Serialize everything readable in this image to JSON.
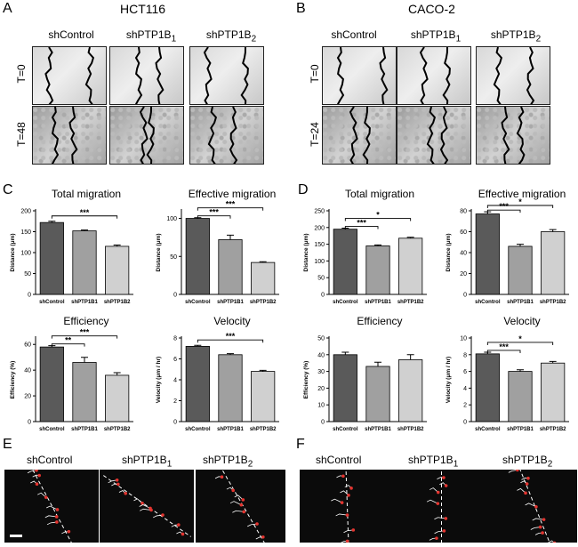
{
  "panels": {
    "A": {
      "letter": "A",
      "cell": "HCT116",
      "conditions": [
        "shControl",
        "shPTP1B",
        "shPTP1B"
      ],
      "subs": [
        "",
        "1",
        "2"
      ],
      "times": [
        "T=0",
        "T=48"
      ]
    },
    "B": {
      "letter": "B",
      "cell": "CACO-2",
      "conditions": [
        "shControl",
        "shPTP1B",
        "shPTP1B"
      ],
      "subs": [
        "",
        "1",
        "2"
      ],
      "times": [
        "T=0",
        "T=24"
      ]
    },
    "C": {
      "letter": "C"
    },
    "D": {
      "letter": "D"
    },
    "E": {
      "letter": "E",
      "conditions": [
        "shControl",
        "shPTP1B",
        "shPTP1B"
      ],
      "subs": [
        "",
        "1",
        "2"
      ]
    },
    "F": {
      "letter": "F",
      "conditions": [
        "shControl",
        "shPTP1B",
        "shPTP1B"
      ],
      "subs": [
        "",
        "1",
        "2"
      ]
    }
  },
  "chart_data": [
    {
      "id": "C1",
      "type": "bar",
      "title": "Total migration",
      "ylabel": "Distance (μm)",
      "categories": [
        "shControl",
        "shPTP1B1",
        "shPTP1B2"
      ],
      "values": [
        172,
        152,
        115
      ],
      "errors": [
        3,
        2,
        3
      ],
      "ylim": [
        0,
        200
      ],
      "yticks": [
        0,
        50,
        100,
        150,
        200
      ],
      "colors": [
        "#5a5a5a",
        "#a0a0a0",
        "#d0d0d0"
      ],
      "significance": [
        {
          "from": 0,
          "to": 2,
          "label": "***"
        }
      ]
    },
    {
      "id": "C2",
      "type": "bar",
      "title": "Effective migration",
      "ylabel": "Distance (μm)",
      "categories": [
        "shControl",
        "shPTP1B1",
        "shPTP1B2"
      ],
      "values": [
        100,
        72,
        42
      ],
      "errors": [
        1,
        6,
        1
      ],
      "ylim": [
        0,
        110
      ],
      "yticks": [
        0,
        50,
        100
      ],
      "colors": [
        "#5a5a5a",
        "#a0a0a0",
        "#d0d0d0"
      ],
      "significance": [
        {
          "from": 0,
          "to": 1,
          "label": "***"
        },
        {
          "from": 0,
          "to": 2,
          "label": "***"
        }
      ]
    },
    {
      "id": "C3",
      "type": "bar",
      "title": "Efficiency",
      "ylabel": "Efficiency (%)",
      "categories": [
        "shControl",
        "shPTP1B1",
        "shPTP1B2"
      ],
      "values": [
        58,
        46,
        36
      ],
      "errors": [
        1,
        4,
        2
      ],
      "ylim": [
        0,
        65
      ],
      "yticks": [
        0,
        20,
        40,
        60
      ],
      "colors": [
        "#5a5a5a",
        "#a0a0a0",
        "#d0d0d0"
      ],
      "significance": [
        {
          "from": 0,
          "to": 1,
          "label": "**"
        },
        {
          "from": 0,
          "to": 2,
          "label": "***"
        }
      ]
    },
    {
      "id": "C4",
      "type": "bar",
      "title": "Velocity",
      "ylabel": "Velocity (μm / hr)",
      "categories": [
        "shControl",
        "shPTP1B1",
        "shPTP1B2"
      ],
      "values": [
        7.2,
        6.4,
        4.8
      ],
      "errors": [
        0.1,
        0.1,
        0.1
      ],
      "ylim": [
        0,
        8
      ],
      "yticks": [
        0,
        2,
        4,
        6,
        8
      ],
      "colors": [
        "#5a5a5a",
        "#a0a0a0",
        "#d0d0d0"
      ],
      "significance": [
        {
          "from": 0,
          "to": 2,
          "label": "***"
        }
      ]
    },
    {
      "id": "D1",
      "type": "bar",
      "title": "Total migration",
      "ylabel": "Distance (μm)",
      "categories": [
        "shControl",
        "shPTP1B1",
        "shPTP1B2"
      ],
      "values": [
        195,
        145,
        168
      ],
      "errors": [
        3,
        3,
        3
      ],
      "ylim": [
        0,
        250
      ],
      "yticks": [
        0,
        50,
        100,
        150,
        200,
        250
      ],
      "colors": [
        "#5a5a5a",
        "#a0a0a0",
        "#d0d0d0"
      ],
      "significance": [
        {
          "from": 0,
          "to": 1,
          "label": "***"
        },
        {
          "from": 0,
          "to": 2,
          "label": "*"
        }
      ]
    },
    {
      "id": "D2",
      "type": "bar",
      "title": "Effective migration",
      "ylabel": "Distance (μm)",
      "categories": [
        "shControl",
        "shPTP1B1",
        "shPTP1B2"
      ],
      "values": [
        77,
        46,
        60
      ],
      "errors": [
        2,
        2,
        2
      ],
      "ylim": [
        0,
        80
      ],
      "yticks": [
        0,
        20,
        40,
        60,
        80
      ],
      "colors": [
        "#5a5a5a",
        "#a0a0a0",
        "#d0d0d0"
      ],
      "significance": [
        {
          "from": 0,
          "to": 1,
          "label": "***"
        },
        {
          "from": 0,
          "to": 2,
          "label": "*"
        }
      ]
    },
    {
      "id": "D3",
      "type": "bar",
      "title": "Efficiency",
      "ylabel": "Efficiency (%)",
      "categories": [
        "shControl",
        "shPTP1B1",
        "shPTP1B2"
      ],
      "values": [
        40,
        33,
        37
      ],
      "errors": [
        1.5,
        2.5,
        3
      ],
      "ylim": [
        0,
        50
      ],
      "yticks": [
        0,
        10,
        20,
        30,
        40,
        50
      ],
      "colors": [
        "#5a5a5a",
        "#a0a0a0",
        "#d0d0d0"
      ],
      "significance": []
    },
    {
      "id": "D4",
      "type": "bar",
      "title": "Velocity",
      "ylabel": "Velocity (μm / hr)",
      "categories": [
        "shControl",
        "shPTP1B1",
        "shPTP1B2"
      ],
      "values": [
        8.1,
        6.0,
        7.0
      ],
      "errors": [
        0.2,
        0.2,
        0.2
      ],
      "ylim": [
        0,
        10
      ],
      "yticks": [
        0,
        2,
        4,
        6,
        8,
        10
      ],
      "colors": [
        "#5a5a5a",
        "#a0a0a0",
        "#d0d0d0"
      ],
      "significance": [
        {
          "from": 0,
          "to": 1,
          "label": "***"
        },
        {
          "from": 0,
          "to": 2,
          "label": "*"
        }
      ]
    }
  ]
}
